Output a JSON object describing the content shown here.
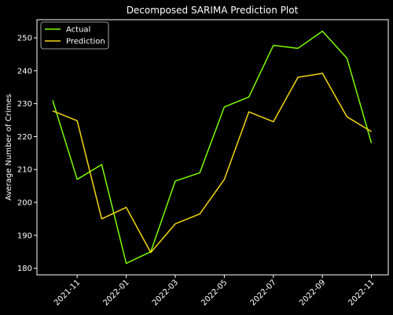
{
  "chart_data": {
    "type": "line",
    "title": "Decomposed SARIMA Prediction Plot",
    "xlabel": "",
    "ylabel": "Average Number of Crimes",
    "x": [
      "2021-10",
      "2021-11",
      "2021-12",
      "2022-01",
      "2022-02",
      "2022-03",
      "2022-04",
      "2022-05",
      "2022-06",
      "2022-07",
      "2022-08",
      "2022-09",
      "2022-10",
      "2022-11"
    ],
    "x_tick_labels": [
      "2021-11",
      "2022-01",
      "2022-03",
      "2022-05",
      "2022-07",
      "2022-09",
      "2022-11"
    ],
    "y_ticks": [
      180,
      190,
      200,
      210,
      220,
      230,
      240,
      250
    ],
    "ylim": [
      178,
      255.5
    ],
    "grid": false,
    "legend_position": "top-left",
    "series": [
      {
        "name": "Actual",
        "color": "#7cfc00",
        "values": [
          231,
          207,
          211.5,
          181.5,
          185,
          206.5,
          209,
          229,
          232,
          247.7,
          246.8,
          252,
          243.8,
          218
        ]
      },
      {
        "name": "Prediction",
        "color": "#f5d60f",
        "values": [
          227.8,
          224.8,
          195,
          198.5,
          184.8,
          193.5,
          196.5,
          207,
          227.5,
          224.5,
          238,
          239.2,
          226,
          221.5
        ]
      }
    ]
  },
  "colors": {
    "background": "#000000",
    "foreground": "#ffffff"
  }
}
